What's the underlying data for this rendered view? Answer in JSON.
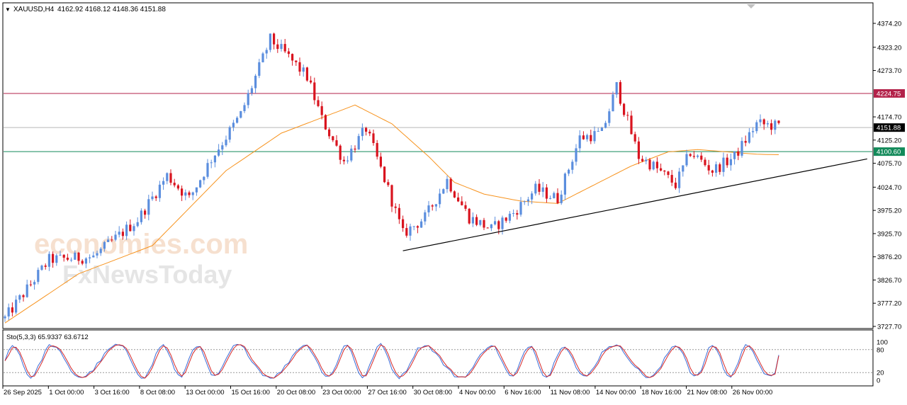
{
  "header": {
    "arrow": "▼",
    "symbol": "XAUUSD,H4",
    "ohlc": "4162.92 4168.12 4148.36 4151.88"
  },
  "stoch_label": "Sto(5,3,3) 65.9337 63.6712",
  "watermark": {
    "line1": "economies.com",
    "line2": "FxNewsToday"
  },
  "colors": {
    "up": "#5b8ede",
    "down": "#d9141f",
    "ma": "#f7931e",
    "resistance": "#b3224a",
    "support": "#138a5a",
    "current": "#000000",
    "stoch_main": "#3a6bd8",
    "stoch_signal": "#d62828"
  },
  "chart_data": [
    {
      "type": "candlestick",
      "symbol": "XAUUSD",
      "timeframe": "H4",
      "ylim": [
        3727.7,
        4400
      ],
      "y_ticks": [
        "4374.20",
        "4323.20",
        "4273.70",
        "4224.75",
        "4174.70",
        "4125.20",
        "4100.60",
        "4075.70",
        "4024.70",
        "3975.20",
        "3925.70",
        "3876.20",
        "3826.70",
        "3777.20",
        "3727.70"
      ],
      "x_ticks": [
        "26 Sep 2025",
        "1 Oct 00:00",
        "3 Oct 16:00",
        "8 Oct 08:00",
        "13 Oct 00:00",
        "15 Oct 16:00",
        "20 Oct 08:00",
        "23 Oct 00:00",
        "27 Oct 16:00",
        "30 Oct 08:00",
        "4 Nov 00:00",
        "6 Nov 16:00",
        "11 Nov 08:00",
        "14 Nov 00:00",
        "18 Nov 16:00",
        "21 Nov 08:00",
        "26 Nov 00:00"
      ],
      "levels": [
        {
          "value": 4224.75,
          "label": "4224.75",
          "role": "resistance"
        },
        {
          "value": 4151.88,
          "label": "4151.88",
          "role": "current"
        },
        {
          "value": 4100.6,
          "label": "4100.60",
          "role": "support"
        }
      ],
      "trendline": {
        "from": {
          "bar": 108,
          "price": 3889
        },
        "to": {
          "bar": 234,
          "price": 4085
        }
      },
      "close_path": [
        [
          0,
          3745
        ],
        [
          12,
          3870
        ],
        [
          24,
          3876
        ],
        [
          36,
          3955
        ],
        [
          44,
          4050
        ],
        [
          50,
          4000
        ],
        [
          56,
          4085
        ],
        [
          64,
          4180
        ],
        [
          72,
          4340
        ],
        [
          76,
          4310
        ],
        [
          82,
          4260
        ],
        [
          86,
          4170
        ],
        [
          92,
          4080
        ],
        [
          98,
          4150
        ],
        [
          104,
          4020
        ],
        [
          108,
          3925
        ],
        [
          114,
          3960
        ],
        [
          120,
          4040
        ],
        [
          126,
          3960
        ],
        [
          132,
          3935
        ],
        [
          138,
          3970
        ],
        [
          144,
          4020
        ],
        [
          150,
          4000
        ],
        [
          156,
          4130
        ],
        [
          162,
          4140
        ],
        [
          166,
          4240
        ],
        [
          172,
          4090
        ],
        [
          176,
          4070
        ],
        [
          182,
          4030
        ],
        [
          186,
          4100
        ],
        [
          192,
          4060
        ],
        [
          198,
          4090
        ],
        [
          204,
          4160
        ],
        [
          210,
          4155
        ]
      ],
      "ma": [
        [
          0,
          3735
        ],
        [
          20,
          3840
        ],
        [
          40,
          3900
        ],
        [
          60,
          4060
        ],
        [
          75,
          4140
        ],
        [
          85,
          4170
        ],
        [
          95,
          4200
        ],
        [
          105,
          4160
        ],
        [
          115,
          4090
        ],
        [
          122,
          4035
        ],
        [
          130,
          4010
        ],
        [
          140,
          3995
        ],
        [
          150,
          3990
        ],
        [
          160,
          4030
        ],
        [
          170,
          4070
        ],
        [
          180,
          4100
        ],
        [
          188,
          4105
        ],
        [
          196,
          4100
        ],
        [
          204,
          4095
        ],
        [
          210,
          4094
        ]
      ]
    },
    {
      "type": "line",
      "name": "Sto(5,3,3)",
      "ylim": [
        0,
        100
      ],
      "y_ticks": [
        "100",
        "80",
        "20",
        "0"
      ],
      "levels": [
        80,
        20
      ],
      "values": [
        65.9337,
        63.6712
      ]
    }
  ]
}
